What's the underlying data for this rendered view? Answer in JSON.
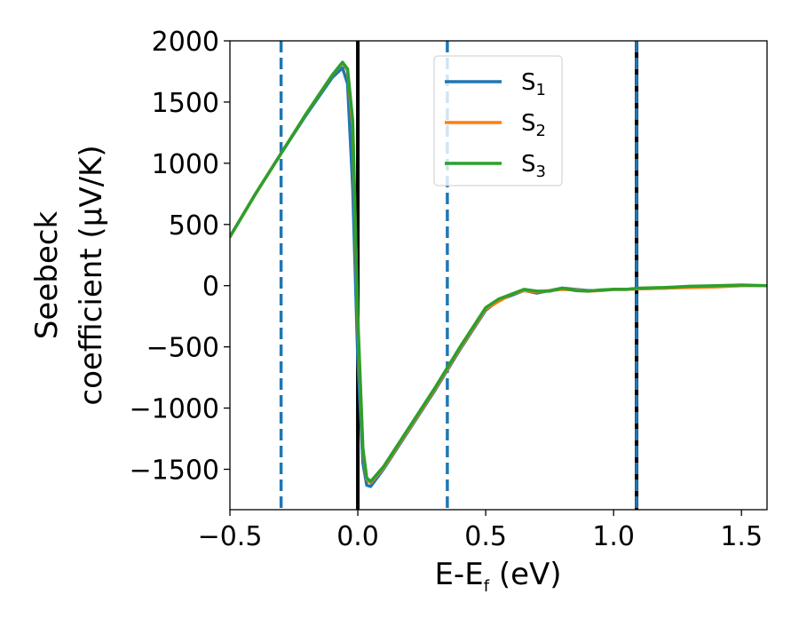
{
  "chart_data": {
    "type": "line",
    "title": "",
    "xlabel": {
      "main": "E-E",
      "sub": "f",
      "tail": " (eV)"
    },
    "ylabel": {
      "line1": "Seebeck",
      "line2": "coefficient  (μV/K)"
    },
    "xlim": [
      -0.5,
      1.6
    ],
    "ylim": [
      -1830,
      2000
    ],
    "xticks": [
      {
        "value": -0.5,
        "label": "−0.5"
      },
      {
        "value": 0.0,
        "label": "0.0"
      },
      {
        "value": 0.5,
        "label": "0.5"
      },
      {
        "value": 1.0,
        "label": "1.0"
      },
      {
        "value": 1.5,
        "label": "1.5"
      }
    ],
    "yticks": [
      {
        "value": 2000,
        "label": "2000"
      },
      {
        "value": 1500,
        "label": "1500"
      },
      {
        "value": 1000,
        "label": "1000"
      },
      {
        "value": 500,
        "label": "500"
      },
      {
        "value": 0,
        "label": "0"
      },
      {
        "value": -500,
        "label": "−500"
      },
      {
        "value": -1000,
        "label": "−1000"
      },
      {
        "value": -1500,
        "label": "−1500"
      }
    ],
    "grid": false,
    "legend_position": "top-center",
    "series": [
      {
        "name": "S",
        "sub": "1",
        "color": "#1f77b4",
        "x": [
          -0.5,
          -0.4,
          -0.3,
          -0.2,
          -0.1,
          -0.06,
          -0.04,
          -0.02,
          0.0,
          0.02,
          0.035,
          0.05,
          0.1,
          0.2,
          0.3,
          0.4,
          0.5,
          0.55,
          0.6,
          0.65,
          0.7,
          0.75,
          0.8,
          0.85,
          0.9,
          0.95,
          1.0,
          1.05,
          1.1,
          1.2,
          1.3,
          1.4,
          1.5,
          1.6
        ],
        "y": [
          400,
          750,
          1080,
          1400,
          1700,
          1780,
          1650,
          800,
          -600,
          -1450,
          -1630,
          -1640,
          -1500,
          -1180,
          -860,
          -520,
          -200,
          -120,
          -80,
          -40,
          -60,
          -40,
          -20,
          -30,
          -40,
          -40,
          -30,
          -30,
          -25,
          -20,
          -10,
          -5,
          0,
          0
        ]
      },
      {
        "name": "S",
        "sub": "2",
        "color": "#ff7f0e",
        "x": [
          -0.5,
          -0.4,
          -0.3,
          -0.2,
          -0.1,
          -0.06,
          -0.04,
          -0.02,
          0.0,
          0.02,
          0.035,
          0.05,
          0.1,
          0.2,
          0.3,
          0.4,
          0.5,
          0.55,
          0.6,
          0.65,
          0.7,
          0.75,
          0.8,
          0.85,
          0.9,
          0.95,
          1.0,
          1.05,
          1.1,
          1.2,
          1.3,
          1.4,
          1.5,
          1.6
        ],
        "y": [
          400,
          750,
          1080,
          1410,
          1720,
          1820,
          1760,
          1300,
          -300,
          -1350,
          -1580,
          -1610,
          -1490,
          -1170,
          -850,
          -510,
          -190,
          -130,
          -70,
          -40,
          -50,
          -40,
          -30,
          -35,
          -45,
          -40,
          -30,
          -30,
          -25,
          -20,
          -15,
          -10,
          0,
          0
        ]
      },
      {
        "name": "S",
        "sub": "3",
        "color": "#2ca02c",
        "x": [
          -0.5,
          -0.4,
          -0.3,
          -0.2,
          -0.1,
          -0.06,
          -0.04,
          -0.02,
          0.0,
          0.02,
          0.035,
          0.05,
          0.1,
          0.2,
          0.3,
          0.4,
          0.5,
          0.55,
          0.6,
          0.65,
          0.7,
          0.75,
          0.8,
          0.85,
          0.9,
          0.95,
          1.0,
          1.05,
          1.1,
          1.2,
          1.3,
          1.4,
          1.5,
          1.6
        ],
        "y": [
          400,
          750,
          1080,
          1410,
          1720,
          1825,
          1770,
          1350,
          -250,
          -1330,
          -1570,
          -1600,
          -1480,
          -1160,
          -840,
          -500,
          -180,
          -110,
          -70,
          -30,
          -45,
          -45,
          -20,
          -40,
          -45,
          -35,
          -30,
          -30,
          -20,
          -15,
          -5,
          0,
          5,
          0
        ]
      }
    ],
    "vertical_lines": [
      {
        "x": -0.3,
        "style": "dashed",
        "color": "#1f77b4"
      },
      {
        "x": 0.0,
        "style": "solid",
        "color": "#000000"
      },
      {
        "x": 0.35,
        "style": "dashed",
        "color": "#1f77b4"
      },
      {
        "x": 1.09,
        "style": "solid",
        "color": "#000000"
      },
      {
        "x": 1.09,
        "style": "dashed",
        "color": "#1f77b4"
      }
    ]
  }
}
